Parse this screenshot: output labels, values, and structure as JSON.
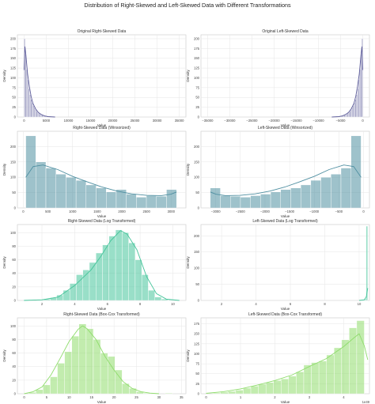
{
  "figure": {
    "title": "Distribution of Right-Skewed and Left-Skewed Data with Different Transformations",
    "colors": {
      "purple": "#5f5e9b",
      "teal": "#4f8fa1",
      "green": "#45c49a",
      "lime": "#8fdc6c"
    }
  },
  "chart_data": [
    {
      "type": "histogram",
      "title": "Original Right-Skewed Data",
      "xlabel": "Value",
      "ylabel": "Density",
      "xlim": [
        -1500,
        36500
      ],
      "ylim": [
        0,
        210
      ],
      "xticks": [
        0,
        5000,
        10000,
        15000,
        20000,
        25000,
        30000,
        35000
      ],
      "yticks": [
        0,
        25,
        50,
        75,
        100,
        125,
        150,
        175,
        200
      ],
      "color": "#5f5e9b",
      "bin_edges": [
        0,
        250,
        500,
        750,
        1000,
        1250,
        1500,
        1750,
        2000,
        2250,
        2500,
        2750,
        3000,
        3250,
        3500,
        3750,
        4000,
        4250,
        4500,
        4750,
        5000,
        5250,
        5500
      ],
      "counts": [
        200,
        160,
        122,
        95,
        72,
        57,
        45,
        36,
        29,
        24,
        19,
        15,
        12,
        10,
        8,
        6,
        5,
        4,
        3,
        3,
        2,
        2
      ],
      "kde": [
        [
          0,
          120
        ],
        [
          200,
          180
        ],
        [
          400,
          160
        ],
        [
          800,
          110
        ],
        [
          1200,
          78
        ],
        [
          1600,
          52
        ],
        [
          2000,
          35
        ],
        [
          2600,
          21
        ],
        [
          3200,
          12
        ],
        [
          3800,
          7
        ],
        [
          4600,
          3
        ],
        [
          5400,
          1
        ],
        [
          7000,
          0
        ]
      ]
    },
    {
      "type": "histogram",
      "title": "Original Left-Skewed Data",
      "xlabel": "Value",
      "ylabel": "Density",
      "xlim": [
        -36500,
        1500
      ],
      "ylim": [
        0,
        210
      ],
      "xticks": [
        -35000,
        -30000,
        -25000,
        -20000,
        -15000,
        -10000,
        -5000,
        0
      ],
      "yticks": [
        0,
        25,
        50,
        75,
        100,
        125,
        150,
        175,
        200
      ],
      "color": "#5f5e9b",
      "bin_edges": [
        -5500,
        -5250,
        -5000,
        -4750,
        -4500,
        -4250,
        -4000,
        -3750,
        -3500,
        -3250,
        -3000,
        -2750,
        -2500,
        -2250,
        -2000,
        -1750,
        -1500,
        -1250,
        -1000,
        -750,
        -500,
        -250,
        0
      ],
      "counts": [
        2,
        2,
        3,
        3,
        4,
        5,
        6,
        8,
        10,
        12,
        15,
        19,
        24,
        29,
        36,
        45,
        57,
        72,
        95,
        122,
        160,
        200
      ],
      "kde": [
        [
          -7000,
          0
        ],
        [
          -5400,
          1
        ],
        [
          -4600,
          3
        ],
        [
          -3800,
          7
        ],
        [
          -3200,
          12
        ],
        [
          -2600,
          21
        ],
        [
          -2000,
          35
        ],
        [
          -1600,
          52
        ],
        [
          -1200,
          78
        ],
        [
          -800,
          110
        ],
        [
          -400,
          160
        ],
        [
          -200,
          180
        ],
        [
          0,
          120
        ]
      ]
    },
    {
      "type": "histogram",
      "title": "Right-Skewed Data (Winsorized)",
      "xlabel": "Value",
      "ylabel": "Density",
      "xlim": [
        -120,
        3300
      ],
      "ylim": [
        0,
        250
      ],
      "xticks": [
        0,
        500,
        1000,
        1500,
        2000,
        2500,
        3000
      ],
      "yticks": [
        0,
        50,
        100,
        150,
        200
      ],
      "color": "#4f8fa1",
      "bin_edges": [
        50,
        254,
        458,
        662,
        866,
        1070,
        1274,
        1478,
        1682,
        1886,
        2090,
        2294,
        2498,
        2702,
        2906,
        3110
      ],
      "counts": [
        235,
        150,
        130,
        110,
        100,
        90,
        75,
        65,
        52,
        60,
        45,
        35,
        40,
        38,
        60
      ],
      "kde": [
        [
          50,
          100
        ],
        [
          200,
          135
        ],
        [
          400,
          140
        ],
        [
          700,
          125
        ],
        [
          1000,
          103
        ],
        [
          1300,
          85
        ],
        [
          1600,
          68
        ],
        [
          1900,
          55
        ],
        [
          2200,
          46
        ],
        [
          2500,
          41
        ],
        [
          2800,
          40
        ],
        [
          3000,
          45
        ],
        [
          3110,
          52
        ]
      ]
    },
    {
      "type": "histogram",
      "title": "Left-Skewed Data (Winsorized)",
      "xlabel": "Value",
      "ylabel": "Density",
      "xlim": [
        -3300,
        120
      ],
      "ylim": [
        0,
        250
      ],
      "xticks": [
        -3000,
        -2500,
        -2000,
        -1500,
        -1000,
        -500,
        0
      ],
      "yticks": [
        0,
        50,
        100,
        150,
        200
      ],
      "color": "#4f8fa1",
      "bin_edges": [
        -3110,
        -2906,
        -2702,
        -2498,
        -2294,
        -2090,
        -1886,
        -1682,
        -1478,
        -1274,
        -1070,
        -866,
        -662,
        -458,
        -254,
        -50
      ],
      "counts": [
        65,
        40,
        38,
        35,
        40,
        45,
        52,
        60,
        65,
        75,
        90,
        100,
        110,
        130,
        235
      ],
      "kde": [
        [
          -3110,
          52
        ],
        [
          -3000,
          45
        ],
        [
          -2800,
          40
        ],
        [
          -2500,
          41
        ],
        [
          -2200,
          46
        ],
        [
          -1900,
          55
        ],
        [
          -1600,
          68
        ],
        [
          -1300,
          85
        ],
        [
          -1000,
          103
        ],
        [
          -700,
          125
        ],
        [
          -400,
          140
        ],
        [
          -200,
          135
        ],
        [
          -50,
          100
        ]
      ]
    },
    {
      "type": "histogram",
      "title": "Right-Skewed Data (Log Transformed)",
      "xlabel": "Value",
      "ylabel": "Density",
      "xlim": [
        0.5,
        10.8
      ],
      "ylim": [
        0,
        112
      ],
      "xticks": [
        2,
        4,
        6,
        8,
        10
      ],
      "yticks": [
        0,
        20,
        40,
        60,
        80,
        100
      ],
      "color": "#45c49a",
      "bin_edges": [
        0.9,
        1.3,
        1.7,
        2.1,
        2.5,
        2.9,
        3.3,
        3.7,
        4.1,
        4.5,
        4.9,
        5.3,
        5.7,
        6.1,
        6.5,
        6.9,
        7.3,
        7.7,
        8.1,
        8.5,
        8.9,
        9.3,
        9.7,
        10.1
      ],
      "counts": [
        1,
        0,
        1,
        2,
        4,
        8,
        15,
        25,
        38,
        45,
        56,
        70,
        82,
        95,
        104,
        100,
        85,
        60,
        38,
        15,
        5,
        2,
        1
      ],
      "kde": [
        [
          0.9,
          0
        ],
        [
          2.0,
          1
        ],
        [
          3.0,
          5
        ],
        [
          4.0,
          22
        ],
        [
          5.0,
          45
        ],
        [
          5.6,
          65
        ],
        [
          6.2,
          88
        ],
        [
          6.8,
          103
        ],
        [
          7.2,
          98
        ],
        [
          7.8,
          75
        ],
        [
          8.4,
          35
        ],
        [
          9.0,
          10
        ],
        [
          9.6,
          2
        ],
        [
          10.4,
          0
        ]
      ]
    },
    {
      "type": "histogram",
      "title": "Left-Skewed Data (Log Transformed)",
      "xlabel": "Value",
      "ylabel": "Density",
      "xlim": [
        0.8,
        10.6
      ],
      "ylim": [
        0,
        235
      ],
      "xticks": [
        2,
        4,
        6,
        8,
        10
      ],
      "yticks": [
        0,
        50,
        100,
        150,
        200
      ],
      "color": "#45c49a",
      "bin_edges": [
        10.1,
        10.2,
        10.3,
        10.4,
        10.5
      ],
      "counts": [
        1,
        2,
        5,
        230
      ],
      "kde": [
        [
          10.0,
          0
        ],
        [
          10.3,
          2
        ],
        [
          10.42,
          12
        ],
        [
          10.5,
          38
        ]
      ]
    },
    {
      "type": "histogram",
      "title": "Right-Skewed Data (Box-Cox Transformed)",
      "xlabel": "Value",
      "ylabel": "Density",
      "xlim": [
        -1.5,
        36
      ],
      "ylim": [
        0,
        112
      ],
      "xticks": [
        0,
        5,
        10,
        15,
        20,
        25,
        30,
        35
      ],
      "yticks": [
        0,
        20,
        40,
        60,
        80,
        100
      ],
      "color": "#8fdc6c",
      "bin_edges": [
        1,
        2.6,
        4.2,
        5.8,
        7.4,
        9,
        10.6,
        12.2,
        13.8,
        15.4,
        17,
        18.6,
        20.2,
        21.8,
        23.4,
        25,
        26.6,
        28.2,
        29.8,
        31.4,
        33
      ],
      "counts": [
        2,
        6,
        13,
        25,
        45,
        62,
        85,
        103,
        96,
        80,
        60,
        55,
        35,
        15,
        8,
        3,
        1,
        1,
        0,
        1
      ],
      "kde": [
        [
          0,
          0
        ],
        [
          2,
          3
        ],
        [
          4,
          10
        ],
        [
          6,
          28
        ],
        [
          8,
          52
        ],
        [
          10,
          77
        ],
        [
          12,
          95
        ],
        [
          13,
          100
        ],
        [
          14,
          96
        ],
        [
          16,
          80
        ],
        [
          18,
          55
        ],
        [
          20,
          35
        ],
        [
          22,
          18
        ],
        [
          24,
          8
        ],
        [
          26,
          3
        ],
        [
          28,
          1
        ],
        [
          30,
          0
        ]
      ]
    },
    {
      "type": "histogram",
      "title": "Left-Skewed Data (Box-Cox Transformed)",
      "xlabel": "Value",
      "ylabel": "Density",
      "offset_label": "1e49",
      "xlim": [
        -0.15,
        4.75
      ],
      "ylim": [
        0,
        190
      ],
      "xticks": [
        0,
        1,
        2,
        3,
        4
      ],
      "yticks": [
        0,
        25,
        50,
        75,
        100,
        125,
        150,
        175
      ],
      "color": "#8fdc6c",
      "bin_edges": [
        0.2,
        0.42,
        0.64,
        0.86,
        1.08,
        1.3,
        1.52,
        1.74,
        1.96,
        2.18,
        2.4,
        2.62,
        2.84,
        3.06,
        3.28,
        3.5,
        3.72,
        3.94,
        4.16,
        4.38,
        4.6
      ],
      "counts": [
        2,
        4,
        6,
        9,
        14,
        19,
        24,
        28,
        33,
        37,
        44,
        55,
        72,
        78,
        82,
        97,
        115,
        135,
        165,
        183
      ],
      "kde": [
        [
          0,
          1
        ],
        [
          0.5,
          5
        ],
        [
          1.0,
          12
        ],
        [
          1.5,
          22
        ],
        [
          2.0,
          33
        ],
        [
          2.5,
          47
        ],
        [
          3.0,
          68
        ],
        [
          3.5,
          88
        ],
        [
          4.0,
          118
        ],
        [
          4.3,
          140
        ],
        [
          4.45,
          150
        ],
        [
          4.6,
          120
        ],
        [
          4.7,
          85
        ]
      ]
    }
  ]
}
